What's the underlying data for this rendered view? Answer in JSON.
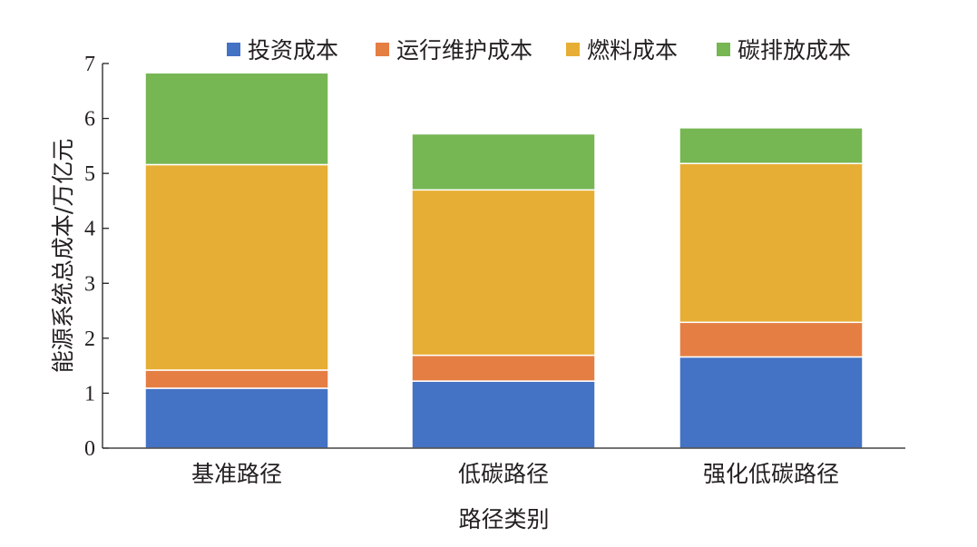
{
  "chart_data": {
    "type": "bar",
    "stacked": true,
    "title": "",
    "xlabel": "路径类别",
    "ylabel": "能源系统总成本/万亿元",
    "ylim": [
      0,
      7
    ],
    "yticks": [
      "0",
      "1",
      "2",
      "3",
      "4",
      "5",
      "6",
      "7"
    ],
    "grid": false,
    "legend_position": "top",
    "categories": [
      "基准路径",
      "低碳路径",
      "强化低碳路径"
    ],
    "series": [
      {
        "name": "投资成本",
        "color": "#4472C4",
        "values": [
          1.09,
          1.22,
          1.66
        ]
      },
      {
        "name": "运行维护成本",
        "color": "#E57E43",
        "values": [
          0.33,
          0.47,
          0.63
        ]
      },
      {
        "name": "燃料成本",
        "color": "#E7AE35",
        "values": [
          3.74,
          3.01,
          2.89
        ]
      },
      {
        "name": "碳排放成本",
        "color": "#76B653",
        "values": [
          1.67,
          1.02,
          0.65
        ]
      }
    ]
  }
}
